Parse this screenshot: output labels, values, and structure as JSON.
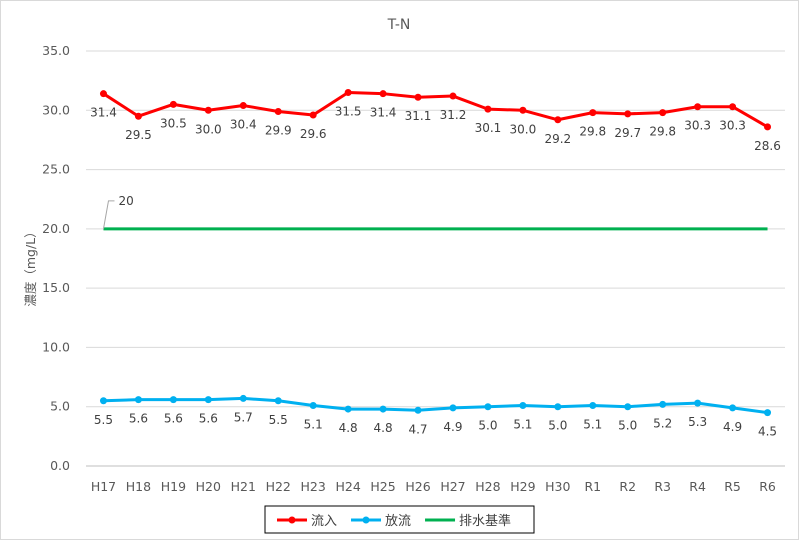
{
  "chart_data": {
    "type": "line",
    "title": "T-N",
    "ylabel": "濃度（mg/L）",
    "ylim": [
      0,
      35
    ],
    "ytick_step": 5,
    "ytick_format": 1,
    "grid": true,
    "legend_position": "bottom",
    "categories": [
      "H17",
      "H18",
      "H19",
      "H20",
      "H21",
      "H22",
      "H23",
      "H24",
      "H25",
      "H26",
      "H27",
      "H28",
      "H29",
      "H30",
      "R1",
      "R2",
      "R3",
      "R4",
      "R5",
      "R6"
    ],
    "series": [
      {
        "name": "流入",
        "color": "#ff0000",
        "label_position": "below",
        "values": [
          31.4,
          29.5,
          30.5,
          30.0,
          30.4,
          29.9,
          29.6,
          31.5,
          31.4,
          31.1,
          31.2,
          30.1,
          30.0,
          29.2,
          29.8,
          29.7,
          29.8,
          30.3,
          30.3,
          28.6
        ]
      },
      {
        "name": "放流",
        "color": "#00b0f0",
        "label_position": "below",
        "values": [
          5.5,
          5.6,
          5.6,
          5.6,
          5.7,
          5.5,
          5.1,
          4.8,
          4.8,
          4.7,
          4.9,
          5.0,
          5.1,
          5.0,
          5.1,
          5.0,
          5.2,
          5.3,
          4.9,
          4.5
        ]
      },
      {
        "name": "排水基準",
        "color": "#00b050",
        "label_position": "none",
        "values": [
          20,
          20,
          20,
          20,
          20,
          20,
          20,
          20,
          20,
          20,
          20,
          20,
          20,
          20,
          20,
          20,
          20,
          20,
          20,
          20
        ]
      }
    ],
    "annotations": [
      {
        "text": "20",
        "series": "排水基準",
        "category": "H17",
        "value": 20
      }
    ]
  }
}
